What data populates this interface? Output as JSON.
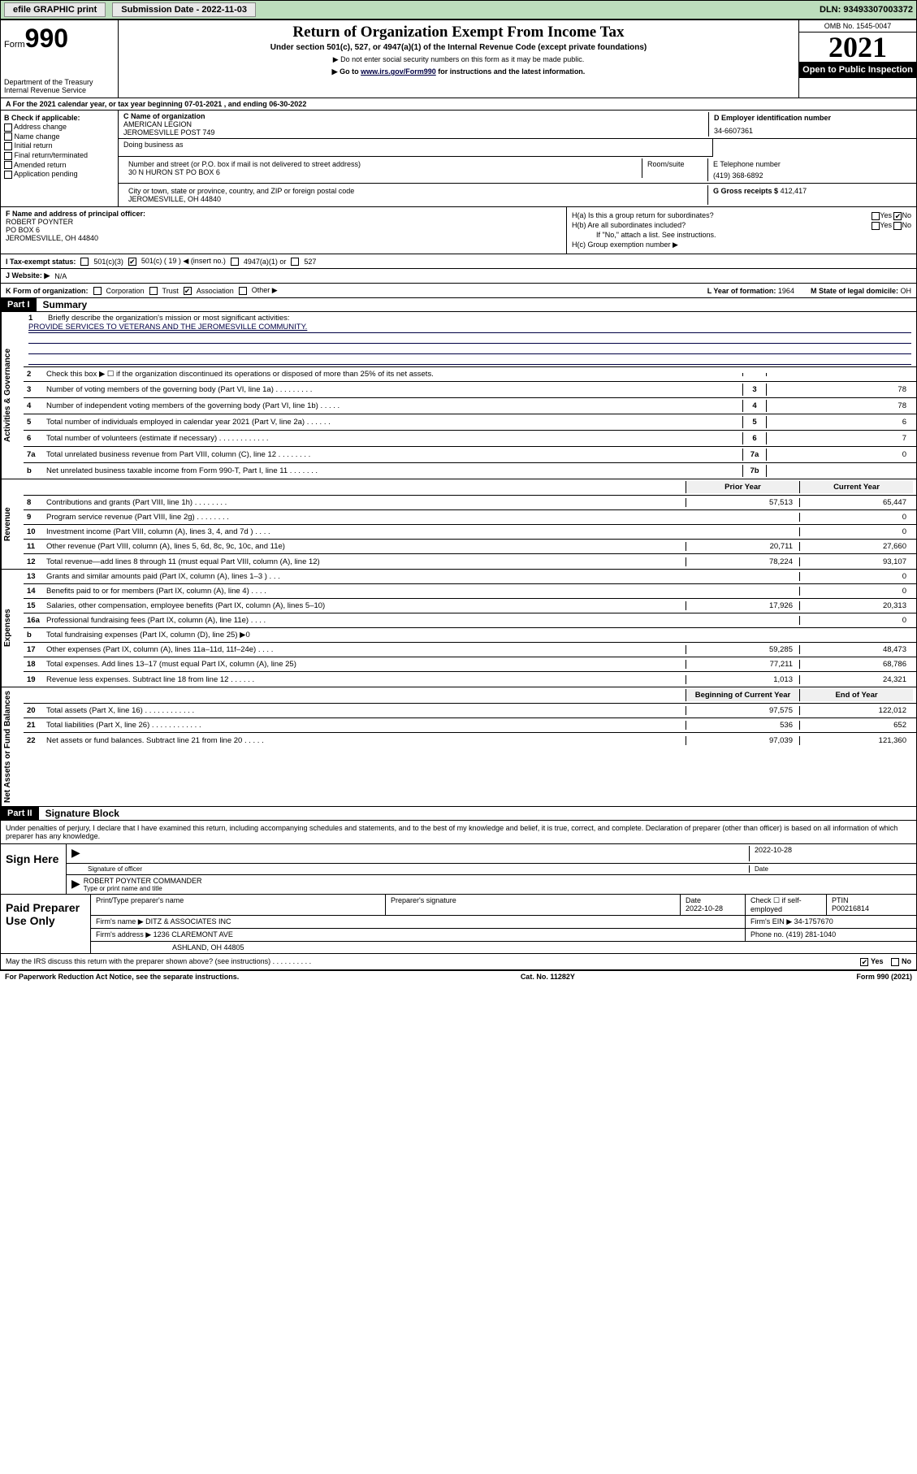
{
  "topbar": {
    "efile_label": "efile GRAPHIC print",
    "submission_label": "Submission Date - 2022-11-03",
    "dln_label": "DLN: 93493307003372"
  },
  "header": {
    "form_label": "Form",
    "form_number": "990",
    "dept": "Department of the Treasury",
    "irs": "Internal Revenue Service",
    "title": "Return of Organization Exempt From Income Tax",
    "subtitle": "Under section 501(c), 527, or 4947(a)(1) of the Internal Revenue Code (except private foundations)",
    "note1": "▶ Do not enter social security numbers on this form as it may be made public.",
    "note2_pre": "▶ Go to ",
    "note2_link": "www.irs.gov/Form990",
    "note2_post": " for instructions and the latest information.",
    "omb": "OMB No. 1545-0047",
    "year": "2021",
    "open": "Open to Public Inspection"
  },
  "row_a": "A For the 2021 calendar year, or tax year beginning 07-01-2021   , and ending 06-30-2022",
  "box_b": {
    "label": "B Check if applicable:",
    "items": [
      "Address change",
      "Name change",
      "Initial return",
      "Final return/terminated",
      "Amended return",
      "Application pending"
    ]
  },
  "box_c": {
    "name_label": "C Name of organization",
    "name1": "AMERICAN LEGION",
    "name2": "JEROMESVILLE POST 749",
    "dba_label": "Doing business as",
    "addr_label": "Number and street (or P.O. box if mail is not delivered to street address)",
    "room_label": "Room/suite",
    "addr": "30 N HURON ST PO BOX 6",
    "city_label": "City or town, state or province, country, and ZIP or foreign postal code",
    "city": "JEROMESVILLE, OH  44840"
  },
  "box_d": {
    "label": "D Employer identification number",
    "value": "34-6607361"
  },
  "box_e": {
    "label": "E Telephone number",
    "value": "(419) 368-6892"
  },
  "box_g": {
    "label": "G Gross receipts $",
    "value": "412,417"
  },
  "box_f": {
    "label": "F  Name and address of principal officer:",
    "name": "ROBERT POYNTER",
    "addr": "PO BOX 6",
    "city": "JEROMESVILLE, OH  44840"
  },
  "box_h": {
    "ha": "H(a)  Is this a group return for subordinates?",
    "hb": "H(b)  Are all subordinates included?",
    "hb_note": "If \"No,\" attach a list. See instructions.",
    "hc": "H(c)  Group exemption number ▶",
    "yes": "Yes",
    "no": "No"
  },
  "row_i": {
    "label": "I   Tax-exempt status:",
    "opt1": "501(c)(3)",
    "opt2": "501(c) ( 19 ) ◀ (insert no.)",
    "opt3": "4947(a)(1) or",
    "opt4": "527"
  },
  "row_j": {
    "label": "J   Website: ▶",
    "value": "N/A"
  },
  "row_k": {
    "label": "K Form of organization:",
    "opts": [
      "Corporation",
      "Trust",
      "Association",
      "Other ▶"
    ],
    "l_label": "L Year of formation:",
    "l_value": "1964",
    "m_label": "M State of legal domicile:",
    "m_value": "OH"
  },
  "part1": {
    "tag": "Part I",
    "title": "Summary"
  },
  "mission": {
    "n": "1",
    "label": "Briefly describe the organization's mission or most significant activities:",
    "text": "PROVIDE SERVICES TO VETERANS AND THE JEROMESVILLE COMMUNITY."
  },
  "vtabs": {
    "gov": "Activities & Governance",
    "rev": "Revenue",
    "exp": "Expenses",
    "net": "Net Assets or Fund Balances"
  },
  "lines_gov": [
    {
      "n": "2",
      "t": "Check this box ▶ ☐  if the organization discontinued its operations or disposed of more than 25% of its net assets.",
      "box": "",
      "v": ""
    },
    {
      "n": "3",
      "t": "Number of voting members of the governing body (Part VI, line 1a)   .    .    .    .    .    .    .    .    .",
      "box": "3",
      "v": "78"
    },
    {
      "n": "4",
      "t": "Number of independent voting members of the governing body (Part VI, line 1b)    .    .    .    .    .",
      "box": "4",
      "v": "78"
    },
    {
      "n": "5",
      "t": "Total number of individuals employed in calendar year 2021 (Part V, line 2a)    .    .    .    .    .    .",
      "box": "5",
      "v": "6"
    },
    {
      "n": "6",
      "t": "Total number of volunteers (estimate if necessary)    .    .    .    .    .    .    .    .    .    .    .    .",
      "box": "6",
      "v": "7"
    },
    {
      "n": "7a",
      "t": "Total unrelated business revenue from Part VIII, column (C), line 12   .    .    .    .    .    .    .    .",
      "box": "7a",
      "v": "0"
    },
    {
      "n": "b",
      "t": "Net unrelated business taxable income from Form 990-T, Part I, line 11    .    .    .    .    .    .    .",
      "box": "7b",
      "v": ""
    }
  ],
  "col_hdr": {
    "prior": "Prior Year",
    "current": "Current Year"
  },
  "lines_rev": [
    {
      "n": "8",
      "t": "Contributions and grants (Part VIII, line 1h)    .    .    .    .    .    .    .    .",
      "p": "57,513",
      "c": "65,447"
    },
    {
      "n": "9",
      "t": "Program service revenue (Part VIII, line 2g)    .    .    .    .    .    .    .    .",
      "p": "",
      "c": "0"
    },
    {
      "n": "10",
      "t": "Investment income (Part VIII, column (A), lines 3, 4, and 7d )    .    .    .    .",
      "p": "",
      "c": "0"
    },
    {
      "n": "11",
      "t": "Other revenue (Part VIII, column (A), lines 5, 6d, 8c, 9c, 10c, and 11e)",
      "p": "20,711",
      "c": "27,660"
    },
    {
      "n": "12",
      "t": "Total revenue—add lines 8 through 11 (must equal Part VIII, column (A), line 12)",
      "p": "78,224",
      "c": "93,107"
    }
  ],
  "lines_exp": [
    {
      "n": "13",
      "t": "Grants and similar amounts paid (Part IX, column (A), lines 1–3 )    .    .    .",
      "p": "",
      "c": "0"
    },
    {
      "n": "14",
      "t": "Benefits paid to or for members (Part IX, column (A), line 4)    .    .    .    .",
      "p": "",
      "c": "0"
    },
    {
      "n": "15",
      "t": "Salaries, other compensation, employee benefits (Part IX, column (A), lines 5–10)",
      "p": "17,926",
      "c": "20,313"
    },
    {
      "n": "16a",
      "t": "Professional fundraising fees (Part IX, column (A), line 11e)    .    .    .    .",
      "p": "",
      "c": "0"
    },
    {
      "n": "b",
      "t": "Total fundraising expenses (Part IX, column (D), line 25) ▶0",
      "p": "gray",
      "c": "gray"
    },
    {
      "n": "17",
      "t": "Other expenses (Part IX, column (A), lines 11a–11d, 11f–24e)   .    .    .    .",
      "p": "59,285",
      "c": "48,473"
    },
    {
      "n": "18",
      "t": "Total expenses. Add lines 13–17 (must equal Part IX, column (A), line 25)",
      "p": "77,211",
      "c": "68,786"
    },
    {
      "n": "19",
      "t": "Revenue less expenses. Subtract line 18 from line 12   .    .    .    .    .    .",
      "p": "1,013",
      "c": "24,321"
    }
  ],
  "col_hdr2": {
    "begin": "Beginning of Current Year",
    "end": "End of Year"
  },
  "lines_net": [
    {
      "n": "20",
      "t": "Total assets (Part X, line 16)    .    .    .    .    .    .    .    .    .    .    .    .",
      "p": "97,575",
      "c": "122,012"
    },
    {
      "n": "21",
      "t": "Total liabilities (Part X, line 26)   .    .    .    .    .    .    .    .    .    .    .    .",
      "p": "536",
      "c": "652"
    },
    {
      "n": "22",
      "t": "Net assets or fund balances. Subtract line 21 from line 20   .    .    .    .    .",
      "p": "97,039",
      "c": "121,360"
    }
  ],
  "part2": {
    "tag": "Part II",
    "title": "Signature Block"
  },
  "sig": {
    "decl": "Under penalties of perjury, I declare that I have examined this return, including accompanying schedules and statements, and to the best of my knowledge and belief, it is true, correct, and complete. Declaration of preparer (other than officer) is based on all information of which preparer has any knowledge.",
    "sign_here": "Sign Here",
    "sig_officer": "Signature of officer",
    "date_label": "Date",
    "date_value": "2022-10-28",
    "name": "ROBERT POYNTER  COMMANDER",
    "name_label": "Type or print name and title"
  },
  "paid": {
    "label": "Paid Preparer Use Only",
    "h_name": "Print/Type preparer's name",
    "h_sig": "Preparer's signature",
    "h_date": "Date",
    "date": "2022-10-28",
    "h_check": "Check ☐ if self-employed",
    "h_ptin": "PTIN",
    "ptin": "P00216814",
    "firm_name_label": "Firm's name    ▶",
    "firm_name": "DITZ & ASSOCIATES INC",
    "firm_ein_label": "Firm's EIN ▶",
    "firm_ein": "34-1757670",
    "firm_addr_label": "Firm's address ▶",
    "firm_addr1": "1236 CLAREMONT AVE",
    "firm_addr2": "ASHLAND, OH  44805",
    "phone_label": "Phone no.",
    "phone": "(419) 281-1040"
  },
  "footer": {
    "q": "May the IRS discuss this return with the preparer shown above? (see instructions)    .    .    .    .    .    .    .    .    .    .",
    "yes": "Yes",
    "no": "No"
  },
  "bottom": {
    "left": "For Paperwork Reduction Act Notice, see the separate instructions.",
    "center": "Cat. No. 11282Y",
    "right": "Form 990 (2021)"
  }
}
